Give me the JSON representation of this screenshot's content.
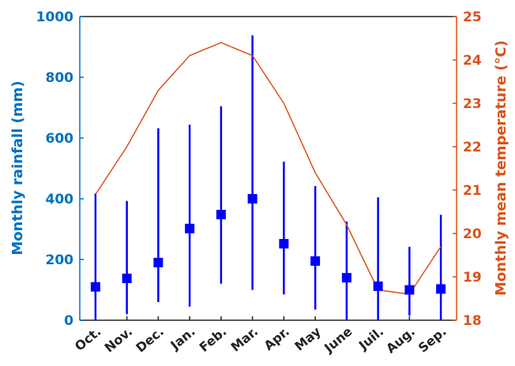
{
  "chart_data": {
    "type": "line",
    "categories": [
      "Oct.",
      "Nov.",
      "Dec.",
      "Jan.",
      "Feb.",
      "Mar.",
      "Apr.",
      "May",
      "June",
      "Juil.",
      "Aug.",
      "Sep."
    ],
    "rainfall": {
      "mean": [
        110,
        138,
        190,
        302,
        348,
        400,
        252,
        195,
        140,
        112,
        100,
        103
      ],
      "min": [
        0,
        20,
        60,
        45,
        120,
        100,
        85,
        35,
        0,
        0,
        15,
        0
      ],
      "max": [
        418,
        393,
        632,
        644,
        705,
        938,
        522,
        442,
        325,
        405,
        242,
        347
      ],
      "color": "#0000ff"
    },
    "temperature": {
      "values": [
        20.9,
        22.0,
        23.3,
        24.1,
        24.4,
        24.1,
        23.0,
        21.4,
        20.2,
        18.7,
        18.6,
        19.7
      ],
      "color": "#d95319"
    },
    "ylabel": "Monthly rainfall (mm)",
    "y2label": "Monthly mean temperature (°C)",
    "ylim": [
      0,
      1000
    ],
    "y2lim": [
      18,
      25
    ],
    "yticks": [
      "0",
      "200",
      "400",
      "600",
      "800",
      "1000"
    ],
    "y2ticks": [
      "18",
      "19",
      "20",
      "21",
      "22",
      "23",
      "24",
      "25"
    ],
    "left_axis_color": "#0070c0",
    "right_axis_color": "#d95319",
    "grid": false
  }
}
